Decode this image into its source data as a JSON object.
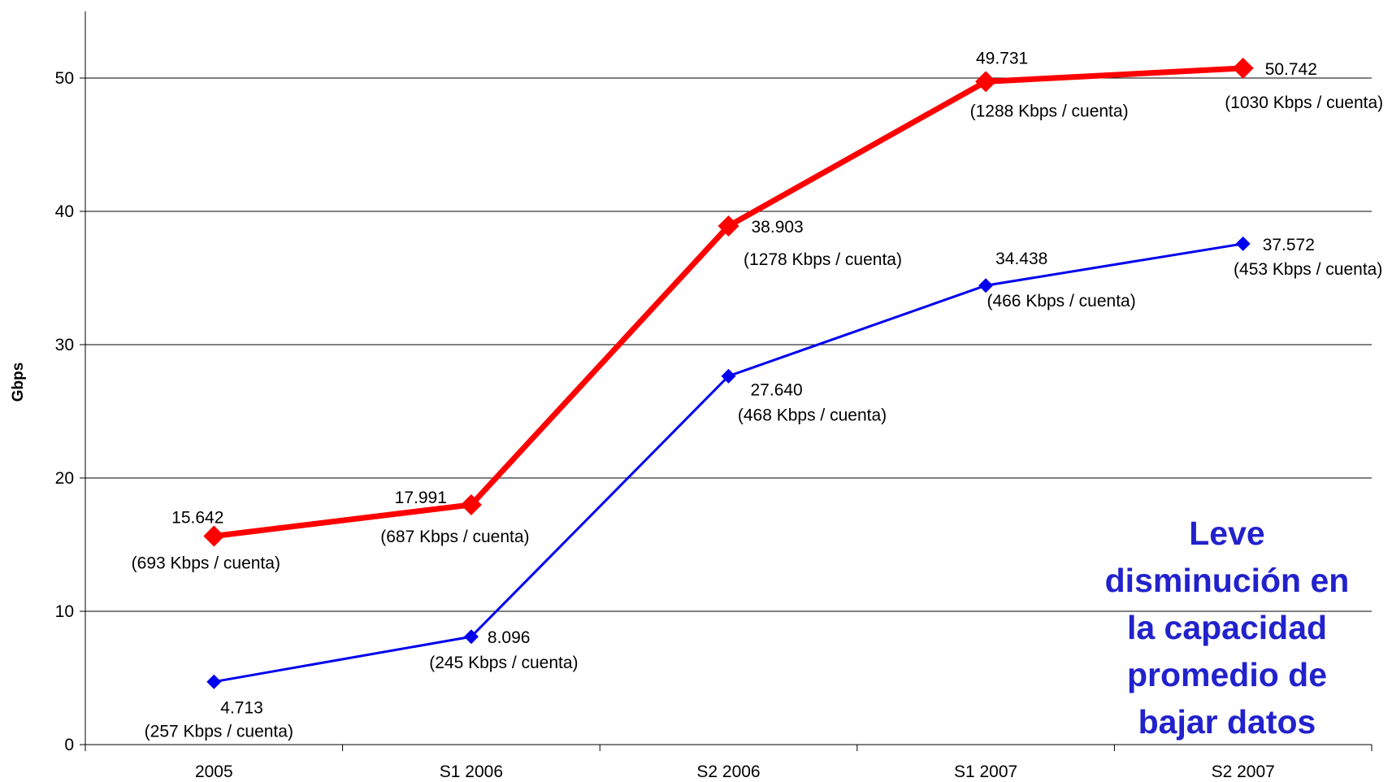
{
  "chart_data": {
    "type": "line",
    "ylabel": "Gbps",
    "xlabel": "",
    "ylim": [
      0,
      55
    ],
    "yticks": [
      0,
      10,
      20,
      30,
      40,
      50
    ],
    "categories": [
      "2005",
      "S1 2006",
      "S2 2006",
      "S1 2007",
      "S2 2007"
    ],
    "grid": "horizontal",
    "series": [
      {
        "color": "#ff0000",
        "marker": "diamond",
        "values": [
          15.642,
          17.991,
          38.903,
          49.731,
          50.742
        ],
        "value_labels": [
          "15.642",
          "17.991",
          "38.903",
          "49.731",
          "50.742"
        ],
        "sub_labels": [
          "(693 Kbps / cuenta)",
          "(687 Kbps / cuenta)",
          "(1278 Kbps / cuenta)",
          "(1288 Kbps / cuenta)",
          "(1030 Kbps / cuenta)"
        ]
      },
      {
        "color": "#0000ee",
        "marker": "diamond",
        "values": [
          4.713,
          8.096,
          27.64,
          34.438,
          37.572
        ],
        "value_labels": [
          "4.713",
          "8.096",
          "27.640",
          "34.438",
          "37.572"
        ],
        "sub_labels": [
          "(257 Kbps / cuenta)",
          "(245 Kbps / cuenta)",
          "(468 Kbps / cuenta)",
          "(466 Kbps / cuenta)",
          "(453 Kbps / cuenta)"
        ]
      }
    ],
    "annotation": {
      "lines": [
        "Leve",
        "disminución en",
        "la capacidad",
        "promedio de",
        "bajar datos"
      ],
      "color": "#2222cc"
    }
  }
}
